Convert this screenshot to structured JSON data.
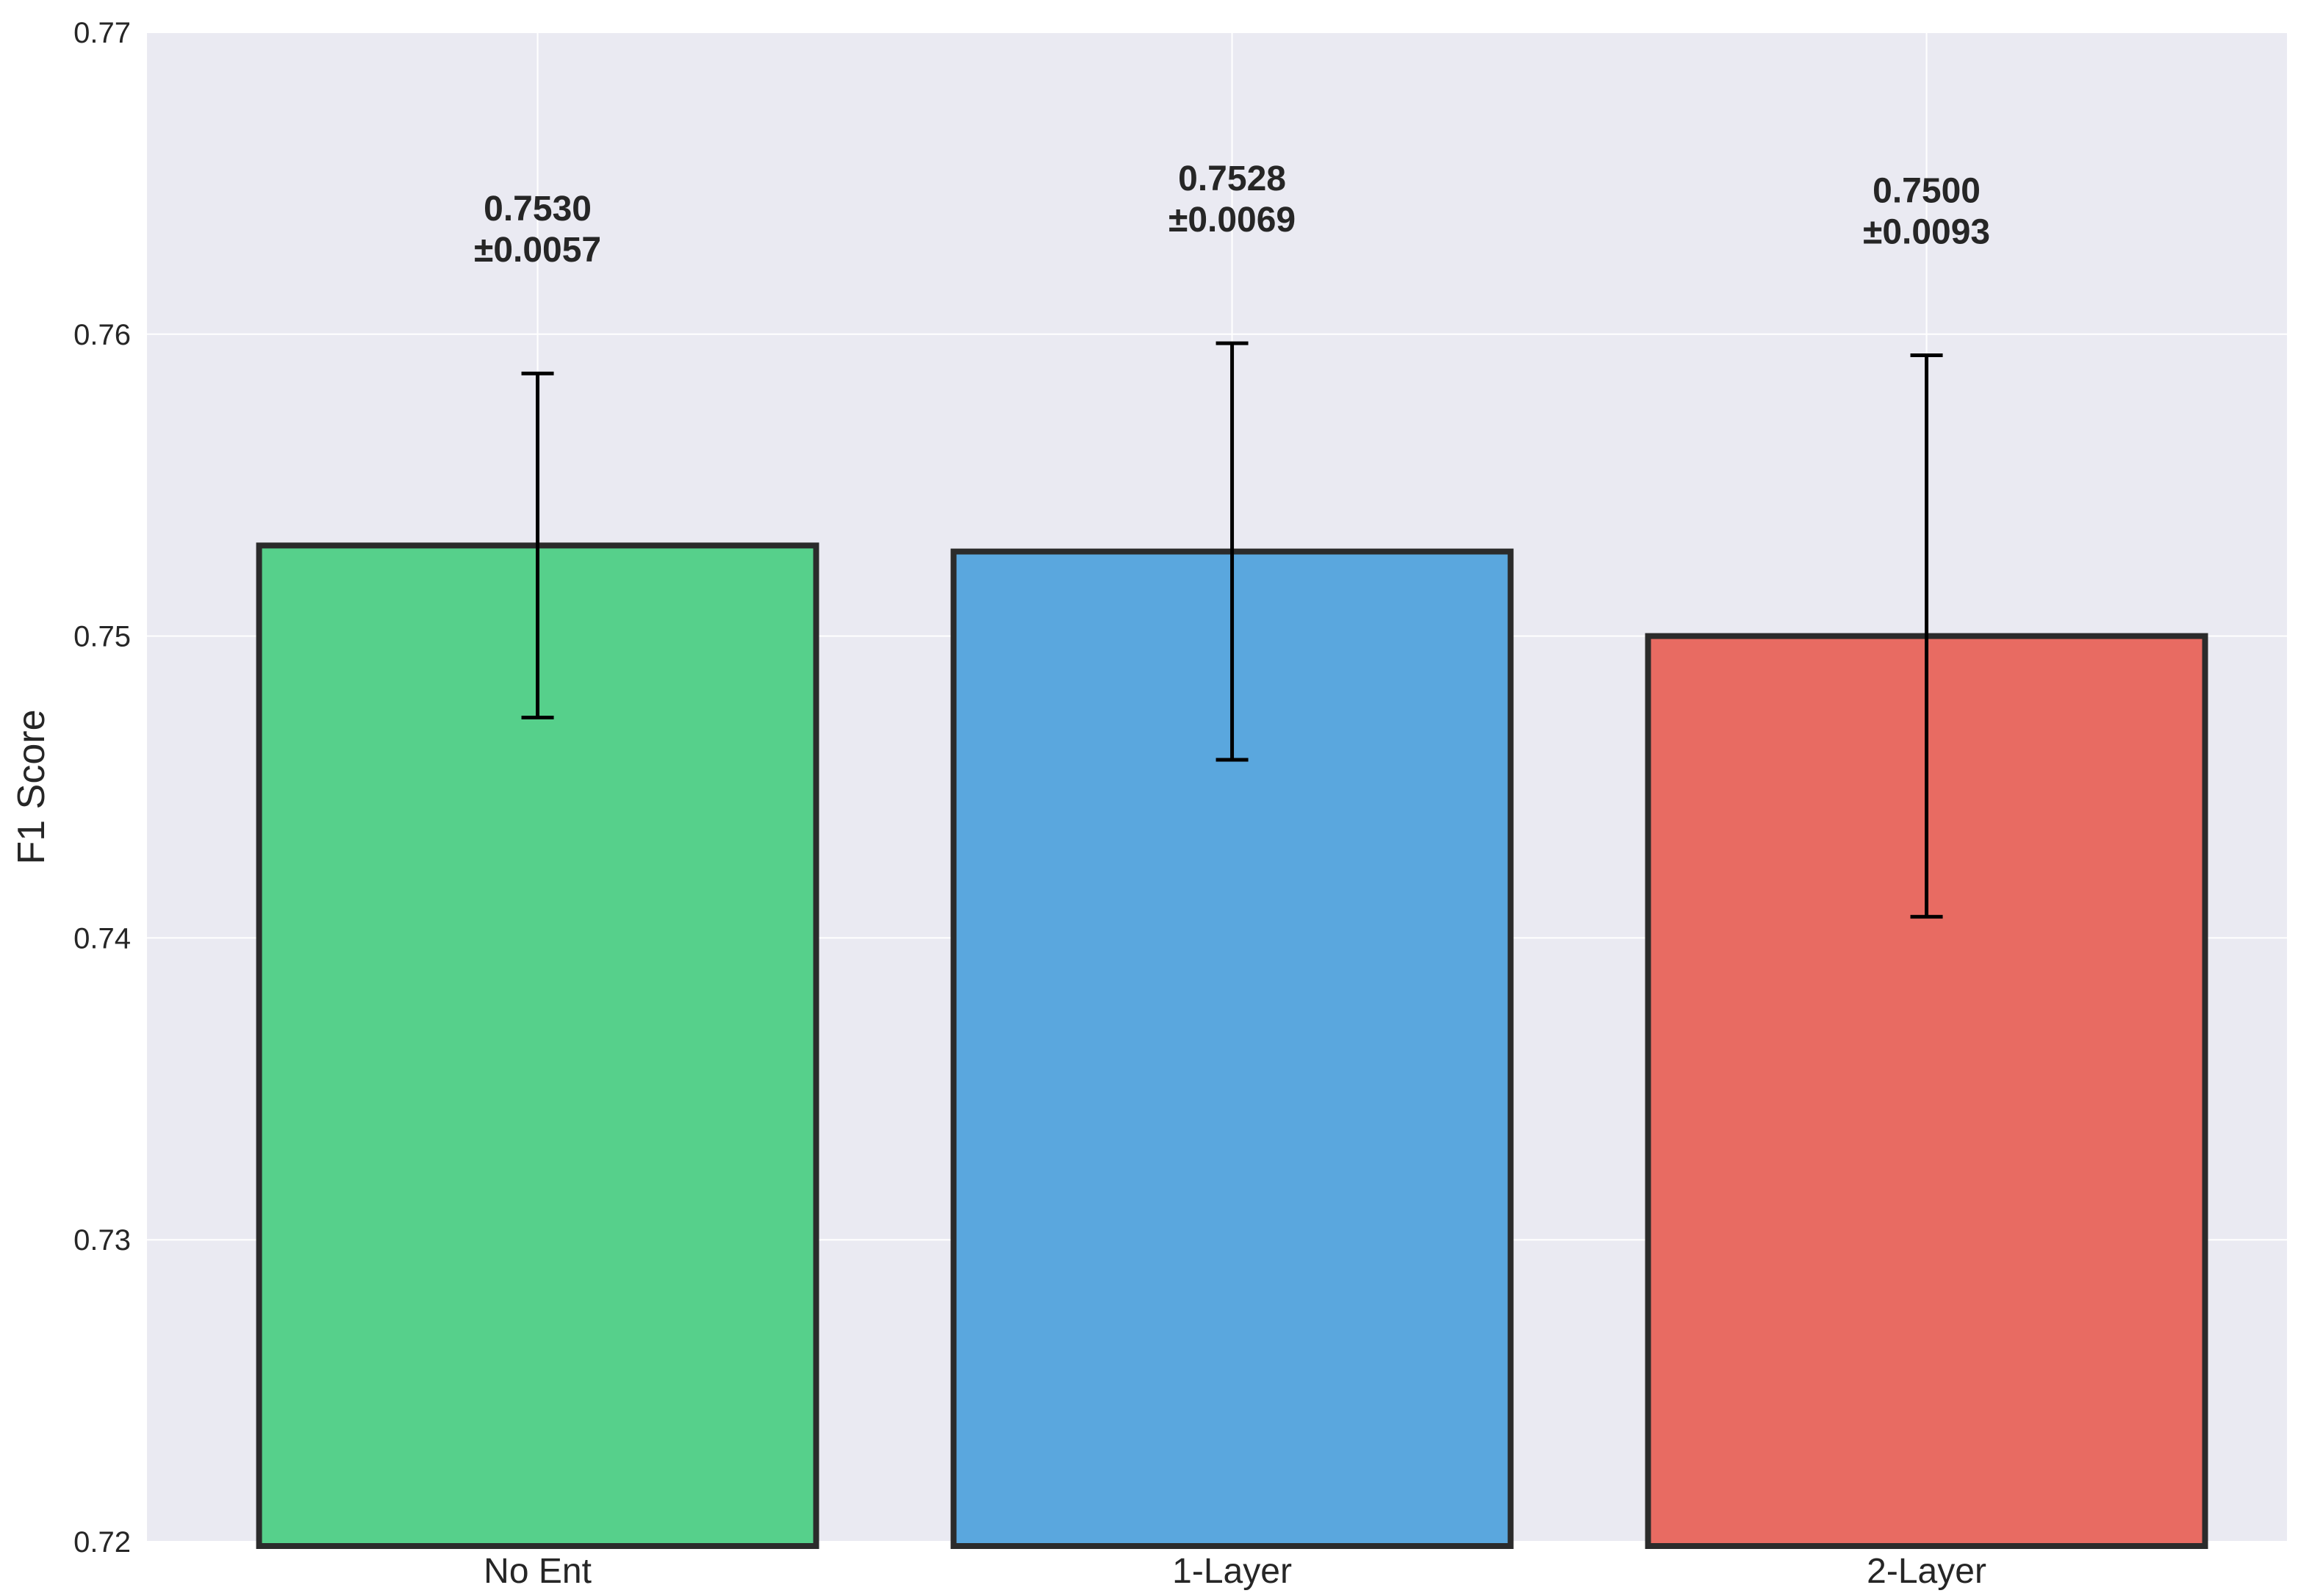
{
  "chart_data": {
    "type": "bar",
    "categories": [
      "No Ent",
      "1-Layer",
      "2-Layer"
    ],
    "values": [
      0.753,
      0.7528,
      0.75
    ],
    "errors": [
      0.0057,
      0.0069,
      0.0093
    ],
    "value_labels": [
      "0.7530",
      "0.7528",
      "0.7500"
    ],
    "error_labels": [
      "±0.0057",
      "±0.0069",
      "±0.0093"
    ],
    "colors": [
      "#56d08b",
      "#5aa7de",
      "#e86b62"
    ],
    "title": "",
    "xlabel": "",
    "ylabel": "F1 Score",
    "ylim": [
      0.72,
      0.77
    ],
    "yticks": [
      0.72,
      0.73,
      0.74,
      0.75,
      0.76,
      0.77
    ],
    "ytick_labels": [
      "0.72",
      "0.73",
      "0.74",
      "0.75",
      "0.76",
      "0.77"
    ],
    "grid": true,
    "legend": "none"
  }
}
